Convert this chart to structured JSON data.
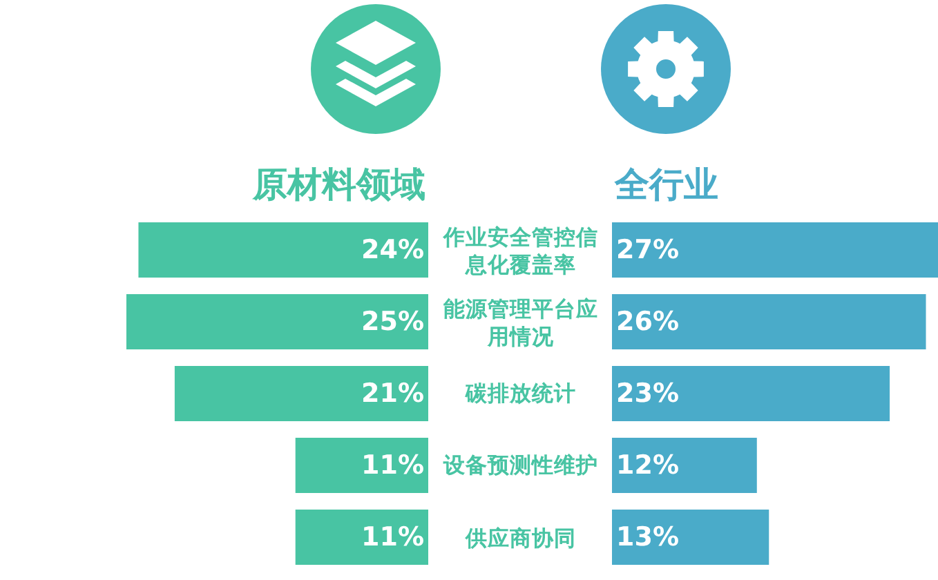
{
  "chart_data": [
    {
      "type": "bar",
      "orientation": "horizontal",
      "tick_labels": "y",
      "categories": [
        "作业安全管控信息化覆盖率",
        "能源管理平台应用情况",
        "碳排放统计",
        "设备预测性维护",
        "供应商协同"
      ],
      "series": [
        {
          "name": "原材料领域",
          "color": "#48c4a3",
          "values": [
            24,
            25,
            21,
            11,
            11
          ],
          "value_labels": [
            "24%",
            "25%",
            "21%",
            "11%",
            "11%"
          ]
        }
      ]
    },
    {
      "type": "bar",
      "orientation": "horizontal",
      "tick_labels": false,
      "categories": [
        "作业安全管控信息化覆盖率",
        "能源管理平台应用情况",
        "碳排放统计",
        "设备预测性维护",
        "供应商协同"
      ],
      "series": [
        {
          "name": "全行业",
          "color": "#4aabc9",
          "values": [
            27,
            26,
            23,
            12,
            13
          ],
          "value_labels": [
            "27%",
            "26%",
            "23%",
            "12%",
            "13%"
          ]
        }
      ]
    }
  ]
}
